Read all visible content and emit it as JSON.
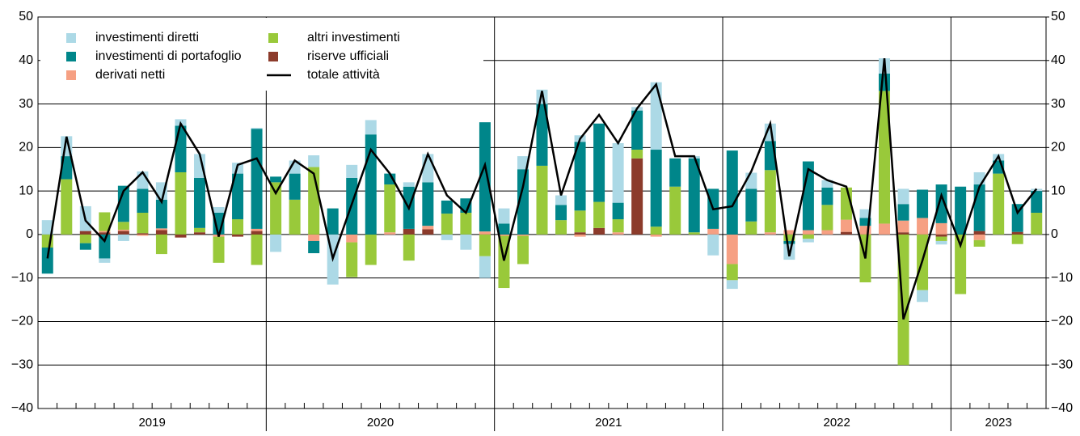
{
  "chart_data": {
    "type": "bar",
    "stacked": true,
    "categories": [
      null,
      null,
      null,
      null,
      null,
      null,
      null,
      null,
      null,
      null,
      null,
      null,
      null,
      null,
      null,
      null,
      null,
      null,
      null,
      null,
      null,
      null,
      null,
      null,
      null,
      null,
      null,
      null,
      null,
      null,
      null,
      null,
      null,
      null,
      null,
      null,
      null,
      null,
      null,
      null,
      null,
      null,
      null,
      null,
      null,
      null,
      null,
      null,
      null,
      null,
      null,
      null,
      null
    ],
    "x_groups": [
      "2019",
      "2020",
      "2021",
      "2022",
      "2023"
    ],
    "ylim": [
      -40,
      50
    ],
    "yticks": [
      {
        "value": -40,
        "label": "−40"
      },
      {
        "value": -30,
        "label": "−30"
      },
      {
        "value": -20,
        "label": "−20"
      },
      {
        "value": -10,
        "label": "−10"
      },
      0,
      10,
      20,
      30,
      40,
      50
    ],
    "y2lim": [
      -40,
      50
    ],
    "y2ticks": [
      {
        "value": -40,
        "label": "−40"
      },
      {
        "value": -30,
        "label": "−30"
      },
      {
        "value": -20,
        "label": "−20"
      },
      {
        "value": -10,
        "label": "−10"
      },
      0,
      10,
      20,
      30,
      40,
      50
    ],
    "grid": true,
    "legend": "upper left",
    "series": [
      {
        "name": "investimenti diretti",
        "color": "#acd9e6",
        "values": [
          3.3,
          4.6,
          5.7,
          -1,
          -1.5,
          4,
          4,
          1.5,
          5.5,
          1.3,
          2.5,
          0.2,
          -4,
          3,
          2.7,
          -11.5,
          3,
          3.3,
          0,
          1,
          6.5,
          -1.3,
          -3.5,
          -5,
          3.5,
          3,
          3.3,
          2.2,
          1.5,
          0,
          13.7,
          0.8,
          15.5,
          0,
          0.5,
          -4.8,
          -2,
          3.7,
          4,
          -3.6,
          -0.8,
          1.7,
          0,
          2,
          3.5,
          3.5,
          -2.7,
          -0.8,
          0,
          2.8,
          1.5,
          0,
          0.5
        ]
      },
      {
        "name": "investimenti di portafoglio",
        "color": "#00868a",
        "values": [
          -6,
          5.3,
          -1.5,
          -5.5,
          8.3,
          5.5,
          6.6,
          10.7,
          11.5,
          5,
          10.5,
          23,
          1.3,
          6,
          -2.8,
          6,
          13,
          23,
          2.5,
          9.7,
          10,
          3,
          3.3,
          25.1,
          2.5,
          15,
          14.2,
          3.5,
          15.8,
          18,
          3.8,
          9,
          17.7,
          6.5,
          17,
          9.2,
          19.3,
          7.5,
          6.7,
          -0.7,
          15.8,
          4,
          0,
          1.8,
          4,
          3.8,
          6.5,
          8.9,
          11,
          10.7,
          3,
          6.4,
          5
        ]
      },
      {
        "name": "derivati netti",
        "color": "#f6a083",
        "values": [
          0,
          0,
          0,
          0.3,
          0.3,
          -0.3,
          0.4,
          0,
          0,
          -0.5,
          0,
          0.5,
          0,
          0,
          -1.5,
          0,
          -1.8,
          0,
          0.5,
          0,
          0.8,
          0,
          0,
          0.7,
          -0.3,
          -0.3,
          0,
          0,
          -0.5,
          0,
          0.5,
          0,
          -0.5,
          0,
          0,
          1.3,
          -6.8,
          0,
          0.5,
          1,
          1,
          1,
          2.8,
          2,
          2.5,
          2.7,
          3.8,
          2.6,
          0,
          -1.3,
          0,
          0,
          0
        ]
      },
      {
        "name": "altri investimenti",
        "color": "#99c93a",
        "values": [
          -3,
          12.7,
          -2,
          4.3,
          1.8,
          4.7,
          -4.5,
          14.3,
          1,
          -6,
          3.5,
          -7,
          12,
          8,
          15.5,
          0,
          -8,
          -7,
          11,
          -6,
          0,
          4.8,
          5,
          -5,
          -12,
          -6.5,
          15.8,
          3.3,
          5,
          6,
          3,
          2,
          1.8,
          11,
          0.5,
          0,
          -3.7,
          3,
          14.3,
          -1.5,
          -1,
          5.8,
          7.4,
          -11,
          30.5,
          -30,
          -12.8,
          -1,
          -13.7,
          -1.5,
          14,
          -2.2,
          5
        ]
      },
      {
        "name": "riserve ufficiali",
        "color": "#8c3b2b",
        "values": [
          0,
          0,
          0.8,
          0.5,
          0.8,
          0.3,
          1,
          -0.7,
          0.5,
          0,
          -0.5,
          0.8,
          0,
          0,
          0,
          0,
          0,
          0,
          0,
          1.3,
          1.2,
          0,
          0,
          0,
          0,
          0,
          0,
          0,
          0.5,
          1.5,
          0,
          17.5,
          0,
          0,
          0,
          0,
          0,
          0,
          0,
          0,
          0,
          0,
          0.6,
          0,
          0,
          0.5,
          0,
          -0.5,
          0,
          0.8,
          0,
          0.6,
          0
        ]
      },
      {
        "name": "totale attività",
        "color": "#000000",
        "mark": "line",
        "values": [
          -5.5,
          22.5,
          3.2,
          -1.5,
          10,
          14.3,
          7.5,
          25.5,
          18.5,
          -0.5,
          16,
          17.5,
          9.5,
          17,
          14,
          -5.5,
          7,
          19.5,
          14,
          6,
          18.5,
          9,
          5,
          16,
          -6,
          11,
          33,
          9,
          22,
          27.5,
          21,
          29,
          34.5,
          18,
          18,
          5.8,
          6.5,
          14.5,
          25.5,
          -5,
          15,
          12.5,
          11,
          -5.5,
          40.5,
          -19.5,
          -6,
          9,
          -2.5,
          11,
          18,
          5,
          10.5
        ]
      }
    ]
  }
}
